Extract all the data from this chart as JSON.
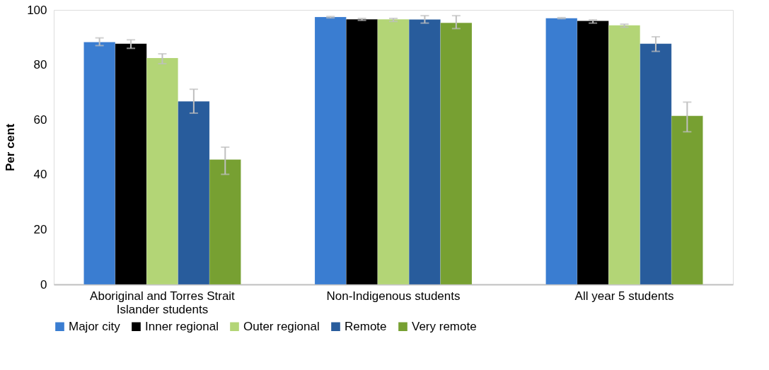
{
  "chart_data": {
    "type": "bar",
    "ylabel": "Per cent",
    "categories": [
      "Aboriginal and Torres Strait Islander students",
      "Non-Indigenous students",
      "All year 5 students"
    ],
    "series": [
      {
        "name": "Major city",
        "color": "#3a7dd1",
        "values": [
          88.3,
          97.4,
          97.0
        ],
        "errors": [
          [
            87.0,
            89.8
          ],
          [
            97.1,
            97.6
          ],
          [
            96.8,
            97.2
          ]
        ]
      },
      {
        "name": "Inner regional",
        "color": "#000000",
        "values": [
          87.7,
          96.6,
          96.0
        ],
        "errors": [
          [
            86.0,
            89.1
          ],
          [
            96.2,
            96.9
          ],
          [
            95.2,
            96.4
          ]
        ]
      },
      {
        "name": "Outer regional",
        "color": "#b3d576",
        "values": [
          82.5,
          96.6,
          94.4
        ],
        "errors": [
          [
            80.4,
            84.0
          ],
          [
            95.8,
            96.9
          ],
          [
            93.7,
            94.8
          ]
        ]
      },
      {
        "name": "Remote",
        "color": "#285c9c",
        "values": [
          66.7,
          96.5,
          87.7
        ],
        "errors": [
          [
            62.4,
            71.1
          ],
          [
            95.2,
            97.9
          ],
          [
            84.9,
            90.2
          ]
        ]
      },
      {
        "name": "Very remote",
        "color": "#77a032",
        "values": [
          45.5,
          95.3,
          61.4
        ],
        "errors": [
          [
            40.1,
            50.0
          ],
          [
            93.2,
            97.9
          ],
          [
            55.6,
            66.4
          ]
        ]
      }
    ],
    "ylim": [
      0,
      100
    ],
    "yticks": [
      0,
      20,
      40,
      60,
      80,
      100
    ],
    "grid": false,
    "legend": "bottom"
  }
}
